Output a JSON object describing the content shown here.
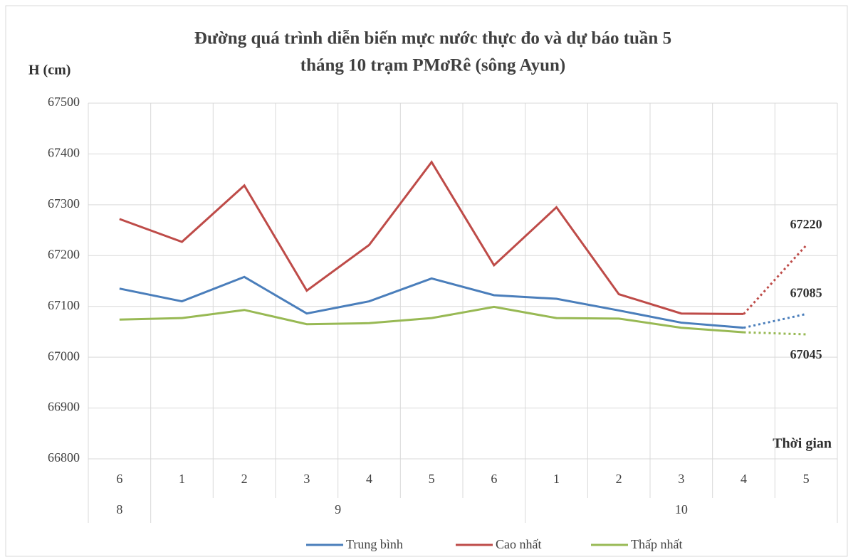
{
  "chart_data": {
    "type": "line",
    "title": [
      "Đường quá trình diễn biến mực nước thực đo và dự báo tuần 5",
      "tháng 10 trạm PMơRê (sông Ayun)"
    ],
    "ylabel": "H (cm)",
    "xlabel": "Thời gian",
    "categories": [
      "6",
      "1",
      "2",
      "3",
      "4",
      "5",
      "6",
      "1",
      "2",
      "3",
      "4",
      "5"
    ],
    "groups": [
      {
        "label": "8",
        "span": 1
      },
      {
        "label": "9",
        "span": 6
      },
      {
        "label": "10",
        "span": 5
      }
    ],
    "forecast_index": 11,
    "series": [
      {
        "name": "Trung bình",
        "color": "#4a7ebb",
        "values": [
          67135,
          67110,
          67158,
          67086,
          67110,
          67155,
          67122,
          67115,
          67092,
          67068,
          67058,
          67085
        ]
      },
      {
        "name": "Cao nhất",
        "color": "#be4b48",
        "values": [
          67272,
          67227,
          67338,
          67131,
          67221,
          67384,
          67181,
          67295,
          67124,
          67086,
          67085,
          67220
        ]
      },
      {
        "name": "Thấp nhất",
        "color": "#98b954",
        "values": [
          67074,
          67077,
          67093,
          67065,
          67067,
          67077,
          67099,
          67077,
          67076,
          67058,
          67049,
          67045
        ]
      }
    ],
    "annotations": [
      {
        "text": "67220",
        "series": 1
      },
      {
        "text": "67085",
        "series": 0
      },
      {
        "text": "67045",
        "series": 2
      }
    ],
    "ylim": [
      66800,
      67500
    ],
    "yticks": [
      66800,
      66900,
      67000,
      67100,
      67200,
      67300,
      67400,
      67500
    ],
    "grid": true
  }
}
